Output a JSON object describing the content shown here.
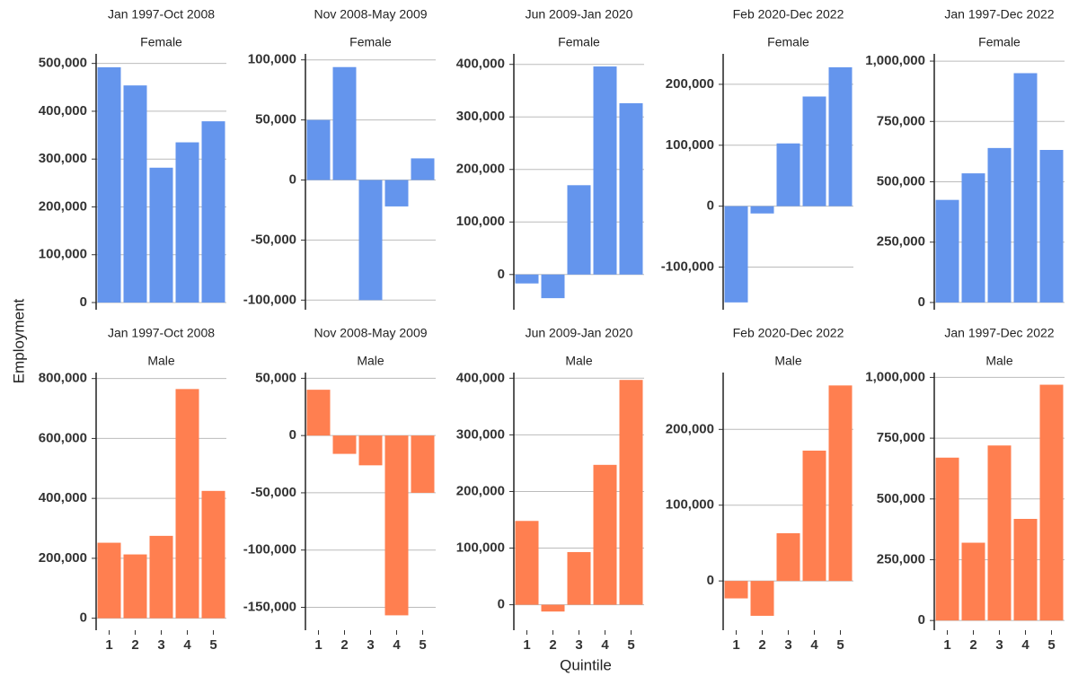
{
  "y_label": "Employment",
  "x_label": "Quintile",
  "chart_data": [
    {
      "type": "bar",
      "title": "Jan 1997-Oct 2008",
      "subtitle": "Female",
      "categories": [
        null,
        null,
        null,
        null,
        null
      ],
      "values": [
        492000,
        454000,
        282000,
        335000,
        379000
      ],
      "color": "#6495ED",
      "ylim": [
        -15000,
        520000
      ],
      "yticks": [
        0,
        {
          "value": 100000,
          "label": "100,000"
        },
        {
          "value": 200000,
          "label": "200,000"
        },
        {
          "value": 300000,
          "label": "300,000"
        },
        {
          "value": 400000,
          "label": "400,000"
        },
        {
          "value": 500000,
          "label": "500,000"
        }
      ],
      "grid": true
    },
    {
      "type": "bar",
      "title": "Nov 2008-May 2009",
      "subtitle": "Female",
      "categories": [
        null,
        null,
        null,
        null,
        null
      ],
      "values": [
        50000,
        94000,
        -100000,
        -22000,
        18000
      ],
      "color": "#6495ED",
      "ylim": [
        -108000,
        105000
      ],
      "yticks": [
        {
          "value": -100000,
          "label": "-100,000"
        },
        {
          "value": -50000,
          "label": "-50,000"
        },
        0,
        {
          "value": 50000,
          "label": "50,000"
        },
        {
          "value": 100000,
          "label": "100,000"
        }
      ],
      "grid": true
    },
    {
      "type": "bar",
      "title": "Jun 2009-Jan 2020",
      "subtitle": "Female",
      "categories": [
        null,
        null,
        null,
        null,
        null
      ],
      "values": [
        -17000,
        -45000,
        170000,
        396000,
        326000
      ],
      "color": "#6495ED",
      "ylim": [
        -67000,
        420000
      ],
      "yticks": [
        0,
        {
          "value": 100000,
          "label": "100,000"
        },
        {
          "value": 200000,
          "label": "200,000"
        },
        {
          "value": 300000,
          "label": "300,000"
        },
        {
          "value": 400000,
          "label": "400,000"
        }
      ],
      "grid": true
    },
    {
      "type": "bar",
      "title": "Feb 2020-Dec 2022",
      "subtitle": "Female",
      "categories": [
        null,
        null,
        null,
        null,
        null
      ],
      "values": [
        -158000,
        -12000,
        103000,
        180000,
        228000
      ],
      "color": "#6495ED",
      "ylim": [
        -170000,
        250000
      ],
      "yticks": [
        {
          "value": -100000,
          "label": "-100,000"
        },
        0,
        {
          "value": 100000,
          "label": "100,000"
        },
        {
          "value": 200000,
          "label": "200,000"
        }
      ],
      "grid": true
    },
    {
      "type": "bar",
      "title": "Jan 1997-Dec 2022",
      "subtitle": "Female",
      "categories": [
        null,
        null,
        null,
        null,
        null
      ],
      "values": [
        425000,
        535000,
        640000,
        950000,
        632000
      ],
      "color": "#6495ED",
      "ylim": [
        -30000,
        1030000
      ],
      "yticks": [
        0,
        {
          "value": 250000,
          "label": "250,000"
        },
        {
          "value": 500000,
          "label": "500,000"
        },
        {
          "value": 750000,
          "label": "750,000"
        },
        {
          "value": 1000000,
          "label": "1,000,000"
        }
      ],
      "grid": true
    },
    {
      "type": "bar",
      "title": "Jan 1997-Oct 2008",
      "subtitle": "Male",
      "categories": [
        "1",
        "2",
        "3",
        "4",
        "5"
      ],
      "values": [
        252000,
        213000,
        275000,
        765000,
        425000
      ],
      "color": "#FF7F50",
      "ylim": [
        -40000,
        820000
      ],
      "yticks": [
        0,
        {
          "value": 200000,
          "label": "200,000"
        },
        {
          "value": 400000,
          "label": "400,000"
        },
        {
          "value": 600000,
          "label": "600,000"
        },
        {
          "value": 800000,
          "label": "800,000"
        }
      ],
      "grid": true
    },
    {
      "type": "bar",
      "title": "Nov 2008-May 2009",
      "subtitle": "Male",
      "categories": [
        "1",
        "2",
        "3",
        "4",
        "5"
      ],
      "values": [
        40000,
        -16000,
        -26000,
        -157000,
        -50000
      ],
      "color": "#FF7F50",
      "ylim": [
        -170000,
        55000
      ],
      "yticks": [
        {
          "value": -150000,
          "label": "-150,000"
        },
        {
          "value": -100000,
          "label": "-100,000"
        },
        {
          "value": -50000,
          "label": "-50,000"
        },
        0,
        {
          "value": 50000,
          "label": "50,000"
        }
      ],
      "grid": true
    },
    {
      "type": "bar",
      "title": "Jun 2009-Jan 2020",
      "subtitle": "Male",
      "categories": [
        "1",
        "2",
        "3",
        "4",
        "5"
      ],
      "values": [
        148000,
        -12000,
        93000,
        247000,
        397000
      ],
      "color": "#FF7F50",
      "ylim": [
        -45000,
        410000
      ],
      "yticks": [
        0,
        {
          "value": 100000,
          "label": "100,000"
        },
        {
          "value": 200000,
          "label": "200,000"
        },
        {
          "value": 300000,
          "label": "300,000"
        },
        {
          "value": 400000,
          "label": "400,000"
        }
      ],
      "grid": true
    },
    {
      "type": "bar",
      "title": "Feb 2020-Dec 2022",
      "subtitle": "Male",
      "categories": [
        "1",
        "2",
        "3",
        "4",
        "5"
      ],
      "values": [
        -23000,
        -46000,
        63000,
        172000,
        258000
      ],
      "color": "#FF7F50",
      "ylim": [
        -65000,
        275000
      ],
      "yticks": [
        0,
        {
          "value": 100000,
          "label": "100,000"
        },
        {
          "value": 200000,
          "label": "200,000"
        }
      ],
      "grid": true
    },
    {
      "type": "bar",
      "title": "Jan 1997-Dec 2022",
      "subtitle": "Male",
      "categories": [
        "1",
        "2",
        "3",
        "4",
        "5"
      ],
      "values": [
        670000,
        320000,
        720000,
        418000,
        970000
      ],
      "color": "#FF7F50",
      "ylim": [
        -40000,
        1020000
      ],
      "yticks": [
        0,
        {
          "value": 250000,
          "label": "250,000"
        },
        {
          "value": 500000,
          "label": "500,000"
        },
        {
          "value": 750000,
          "label": "750,000"
        },
        {
          "value": 1000000,
          "label": "1,000,000"
        }
      ],
      "grid": true
    }
  ]
}
